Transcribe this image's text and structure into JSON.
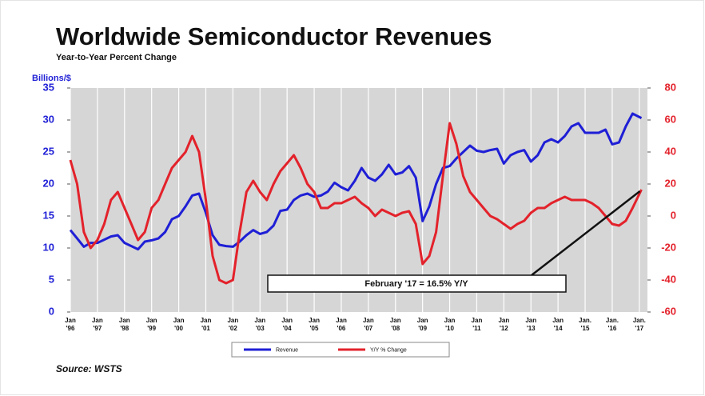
{
  "chart_data": {
    "type": "line",
    "title": "Worldwide Semiconductor Revenues",
    "subtitle": "Year-to-Year Percent Change",
    "y_axis_label": "Billions/$",
    "source": "Source: WSTS",
    "annotation": "February '17 = 16.5% Y/Y",
    "x": [
      1996,
      1996.25,
      1996.5,
      1996.75,
      1997,
      1997.25,
      1997.5,
      1997.75,
      1998,
      1998.25,
      1998.5,
      1998.75,
      1999,
      1999.25,
      1999.5,
      1999.75,
      2000,
      2000.25,
      2000.5,
      2000.75,
      2001,
      2001.25,
      2001.5,
      2001.75,
      2002,
      2002.25,
      2002.5,
      2002.75,
      2003,
      2003.25,
      2003.5,
      2003.75,
      2004,
      2004.25,
      2004.5,
      2004.75,
      2005,
      2005.25,
      2005.5,
      2005.75,
      2006,
      2006.25,
      2006.5,
      2006.75,
      2007,
      2007.25,
      2007.5,
      2007.75,
      2008,
      2008.25,
      2008.5,
      2008.75,
      2009,
      2009.25,
      2009.5,
      2009.75,
      2010,
      2010.25,
      2010.5,
      2010.75,
      2011,
      2011.25,
      2011.5,
      2011.75,
      2012,
      2012.25,
      2012.5,
      2012.75,
      2013,
      2013.25,
      2013.5,
      2013.75,
      2014,
      2014.25,
      2014.5,
      2014.75,
      2015,
      2015.25,
      2015.5,
      2015.75,
      2016,
      2016.25,
      2016.5,
      2016.75,
      2017.08
    ],
    "series": [
      {
        "name": "Revenue",
        "color": "#1f1fd6",
        "axis": "y",
        "values": [
          12.8,
          11.5,
          10.2,
          10.8,
          10.8,
          11.3,
          11.8,
          12.0,
          10.8,
          10.3,
          9.8,
          11.0,
          11.2,
          11.5,
          12.5,
          14.5,
          15.0,
          16.5,
          18.2,
          18.5,
          15.5,
          12.0,
          10.5,
          10.3,
          10.2,
          11.0,
          12.0,
          12.8,
          12.2,
          12.5,
          13.5,
          15.8,
          16.0,
          17.5,
          18.2,
          18.5,
          18.0,
          18.2,
          18.8,
          20.2,
          19.5,
          19.0,
          20.5,
          22.5,
          21.0,
          20.5,
          21.5,
          23.0,
          21.5,
          21.8,
          22.8,
          21.0,
          14.2,
          16.5,
          20.0,
          22.5,
          22.8,
          24.0,
          25.0,
          26.0,
          25.2,
          25.0,
          25.3,
          25.5,
          23.2,
          24.5,
          25.0,
          25.3,
          23.5,
          24.5,
          26.5,
          27.0,
          26.5,
          27.5,
          29.0,
          29.5,
          28.0,
          28.0,
          28.0,
          28.5,
          26.2,
          26.5,
          29.0,
          31.0,
          30.3
        ]
      },
      {
        "name": "Y/Y % Change",
        "color": "#e3222b",
        "axis": "y2",
        "values": [
          35,
          20,
          -10,
          -20,
          -15,
          -5,
          10,
          15,
          5,
          -5,
          -15,
          -10,
          5,
          10,
          20,
          30,
          35,
          40,
          50,
          40,
          10,
          -25,
          -40,
          -42,
          -40,
          -10,
          15,
          22,
          15,
          10,
          20,
          28,
          33,
          38,
          30,
          20,
          15,
          5,
          5,
          8,
          8,
          10,
          12,
          8,
          5,
          0,
          4,
          2,
          0,
          2,
          3,
          -5,
          -30,
          -25,
          -10,
          25,
          58,
          45,
          25,
          15,
          10,
          5,
          0,
          -2,
          -5,
          -8,
          -5,
          -3,
          2,
          5,
          5,
          8,
          10,
          12,
          10,
          10,
          10,
          8,
          5,
          0,
          -5,
          -6,
          -3,
          5,
          16.5
        ]
      }
    ],
    "xlim": [
      1996,
      2017.3
    ],
    "xticks": [
      {
        "value": 1996,
        "label": [
          "Jan",
          "'96"
        ]
      },
      {
        "value": 1997,
        "label": [
          "Jan",
          "'97"
        ]
      },
      {
        "value": 1998,
        "label": [
          "Jan",
          "'98"
        ]
      },
      {
        "value": 1999,
        "label": [
          "Jan",
          "'99"
        ]
      },
      {
        "value": 2000,
        "label": [
          "Jan",
          "'00"
        ]
      },
      {
        "value": 2001,
        "label": [
          "Jan",
          "'01"
        ]
      },
      {
        "value": 2002,
        "label": [
          "Jan",
          "'02"
        ]
      },
      {
        "value": 2003,
        "label": [
          "Jan",
          "'03"
        ]
      },
      {
        "value": 2004,
        "label": [
          "Jan",
          "'04"
        ]
      },
      {
        "value": 2005,
        "label": [
          "Jan",
          "'05"
        ]
      },
      {
        "value": 2006,
        "label": [
          "Jan",
          "'06"
        ]
      },
      {
        "value": 2007,
        "label": [
          "Jan",
          "'07"
        ]
      },
      {
        "value": 2008,
        "label": [
          "Jan",
          "'08"
        ]
      },
      {
        "value": 2009,
        "label": [
          "Jan",
          "'09"
        ]
      },
      {
        "value": 2010,
        "label": [
          "Jan",
          "'10"
        ]
      },
      {
        "value": 2011,
        "label": [
          "Jan",
          "'11"
        ]
      },
      {
        "value": 2012,
        "label": [
          "Jan",
          "'12"
        ]
      },
      {
        "value": 2013,
        "label": [
          "Jan",
          "'13"
        ]
      },
      {
        "value": 2014,
        "label": [
          "Jan",
          "'14"
        ]
      },
      {
        "value": 2015,
        "label": [
          "Jan.",
          "'15"
        ]
      },
      {
        "value": 2016,
        "label": [
          "Jan.",
          "'16"
        ]
      },
      {
        "value": 2017,
        "label": [
          "Jan.",
          "'17"
        ]
      }
    ],
    "ylim": [
      0,
      35
    ],
    "yticks": [
      0,
      5,
      10,
      15,
      20,
      25,
      30,
      35
    ],
    "y2lim": [
      -60,
      80
    ],
    "y2ticks": [
      -60,
      -40,
      -20,
      0,
      20,
      40,
      60,
      80
    ],
    "grid": true
  }
}
